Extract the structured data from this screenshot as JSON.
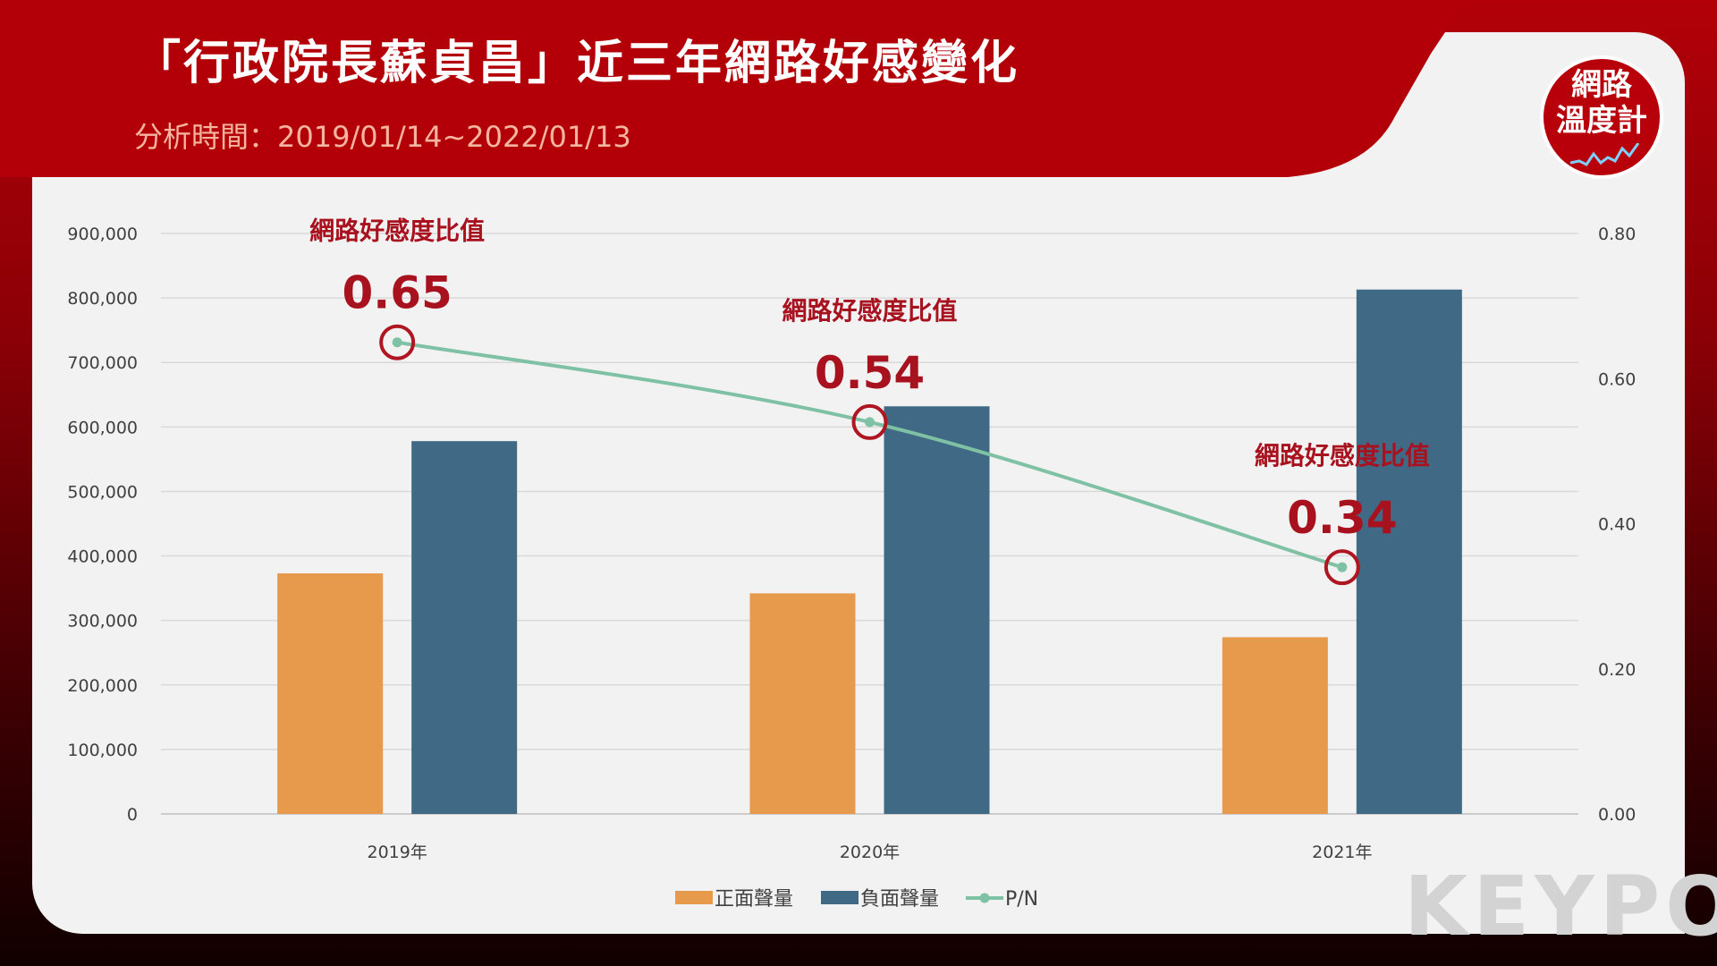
{
  "header": {
    "title": "「行政院長蘇貞昌」近三年網路好感變化",
    "subtitle": "分析時間：2019/01/14~2022/01/13"
  },
  "badge": {
    "line1": "網路",
    "line2": "溫度計"
  },
  "watermark": {
    "text": "KEYPO"
  },
  "colors": {
    "positive": "#e89a4c",
    "negative": "#3f6985",
    "ratio_line": "#7fc1a4",
    "annotation": "#a8121e",
    "header_red": "#b30008"
  },
  "chart_data": {
    "type": "bar",
    "categories": [
      "2019年",
      "2020年",
      "2021年"
    ],
    "series": [
      {
        "name": "正面聲量",
        "type": "bar",
        "axis": "left",
        "values": [
          373000,
          342000,
          274000
        ]
      },
      {
        "name": "負面聲量",
        "type": "bar",
        "axis": "left",
        "values": [
          578000,
          632000,
          813000
        ]
      },
      {
        "name": "P/N",
        "type": "line",
        "axis": "right",
        "values": [
          0.65,
          0.54,
          0.34
        ]
      }
    ],
    "y_left": {
      "min": 0,
      "max": 900000,
      "ticks": [
        "0",
        "100,000",
        "200,000",
        "300,000",
        "400,000",
        "500,000",
        "600,000",
        "700,000",
        "800,000",
        "900,000"
      ]
    },
    "y_right": {
      "min": 0,
      "max": 0.8,
      "ticks": [
        "0.00",
        "0.20",
        "0.40",
        "0.60",
        "0.80"
      ]
    },
    "grid": true,
    "legend_position": "bottom",
    "annotations": [
      {
        "category": "2019年",
        "label": "網路好感度比值",
        "value": "0.65"
      },
      {
        "category": "2020年",
        "label": "網路好感度比值",
        "value": "0.54"
      },
      {
        "category": "2021年",
        "label": "網路好感度比值",
        "value": "0.34"
      }
    ]
  }
}
